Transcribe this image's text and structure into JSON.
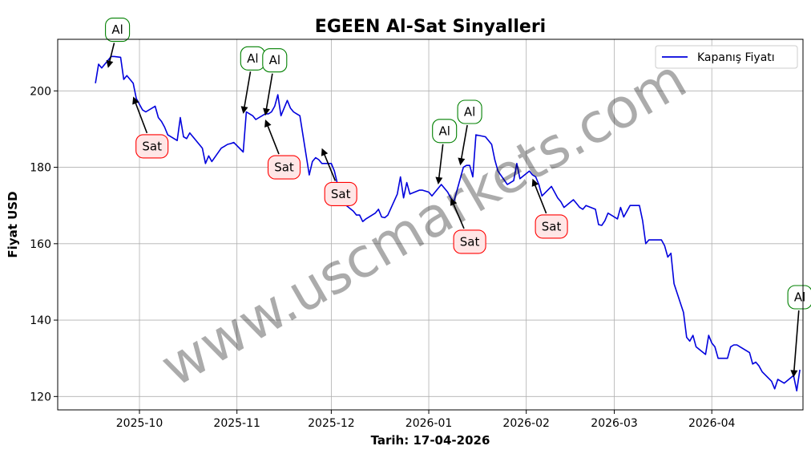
{
  "chart_data": {
    "type": "line",
    "title": "EGEEN Al-Sat Sinyalleri",
    "xlabel": "Tarih: 17-04-2026",
    "ylabel": "Fiyat USD",
    "x_ticks": [
      "2025-10",
      "2025-11",
      "2025-12",
      "2026-01",
      "2026-02",
      "2026-03",
      "2026-04"
    ],
    "y_ticks": [
      120,
      140,
      160,
      180,
      200
    ],
    "xlim": [
      "2025-09-05",
      "2026-04-30"
    ],
    "ylim": [
      116.5,
      213.5
    ],
    "grid": true,
    "legend_position": "top-right",
    "watermark": "www.uscmarkets.com",
    "colors": {
      "line": "#0000dd",
      "buy": "#008000",
      "sell": "#ff0000",
      "sell_fill": "#ffe6e6",
      "buy_fill": "#ffffff",
      "grid": "#b0b0b0"
    },
    "series": [
      {
        "name": "Kapanış Fiyatı",
        "points": [
          [
            "2025-09-17",
            202
          ],
          [
            "2025-09-18",
            207
          ],
          [
            "2025-09-19",
            206
          ],
          [
            "2025-09-22",
            209
          ],
          [
            "2025-09-23",
            209
          ],
          [
            "2025-09-25",
            208.8
          ],
          [
            "2025-09-26",
            203
          ],
          [
            "2025-09-27",
            204
          ],
          [
            "2025-09-29",
            202
          ],
          [
            "2025-09-30",
            198
          ],
          [
            "2025-10-01",
            196.5
          ],
          [
            "2025-10-02",
            195
          ],
          [
            "2025-10-03",
            194.5
          ],
          [
            "2025-10-06",
            196
          ],
          [
            "2025-10-07",
            193
          ],
          [
            "2025-10-08",
            192
          ],
          [
            "2025-10-09",
            190.5
          ],
          [
            "2025-10-10",
            188.5
          ],
          [
            "2025-10-13",
            187
          ],
          [
            "2025-10-14",
            193
          ],
          [
            "2025-10-15",
            188
          ],
          [
            "2025-10-16",
            187.5
          ],
          [
            "2025-10-17",
            189
          ],
          [
            "2025-10-20",
            186
          ],
          [
            "2025-10-21",
            185
          ],
          [
            "2025-10-22",
            181
          ],
          [
            "2025-10-23",
            183
          ],
          [
            "2025-10-24",
            181.5
          ],
          [
            "2025-10-27",
            185
          ],
          [
            "2025-10-28",
            185.5
          ],
          [
            "2025-10-29",
            186
          ],
          [
            "2025-10-30",
            186.2
          ],
          [
            "2025-10-31",
            186.5
          ],
          [
            "2025-11-03",
            184
          ],
          [
            "2025-11-04",
            194.5
          ],
          [
            "2025-11-05",
            194
          ],
          [
            "2025-11-06",
            193.5
          ],
          [
            "2025-11-07",
            192.5
          ],
          [
            "2025-11-10",
            194
          ],
          [
            "2025-11-11",
            194
          ],
          [
            "2025-11-12",
            194.5
          ],
          [
            "2025-11-13",
            196
          ],
          [
            "2025-11-14",
            199
          ],
          [
            "2025-11-15",
            193.5
          ],
          [
            "2025-11-17",
            197.5
          ],
          [
            "2025-11-18",
            195.5
          ],
          [
            "2025-11-19",
            194.5
          ],
          [
            "2025-11-20",
            194
          ],
          [
            "2025-11-21",
            193.5
          ],
          [
            "2025-11-24",
            178
          ],
          [
            "2025-11-25",
            181.5
          ],
          [
            "2025-11-26",
            182.5
          ],
          [
            "2025-11-27",
            182
          ],
          [
            "2025-11-28",
            181
          ],
          [
            "2025-12-01",
            181
          ],
          [
            "2025-12-02",
            179
          ],
          [
            "2025-12-03",
            175.5
          ],
          [
            "2025-12-04",
            173
          ],
          [
            "2025-12-05",
            170.5
          ],
          [
            "2025-12-08",
            168.5
          ],
          [
            "2025-12-09",
            167.5
          ],
          [
            "2025-12-10",
            167.5
          ],
          [
            "2025-12-11",
            165.8
          ],
          [
            "2025-12-12",
            166.5
          ],
          [
            "2025-12-15",
            168
          ],
          [
            "2025-12-16",
            169
          ],
          [
            "2025-12-17",
            167
          ],
          [
            "2025-12-18",
            166.8
          ],
          [
            "2025-12-19",
            167.5
          ],
          [
            "2025-12-22",
            173
          ],
          [
            "2025-12-23",
            177.5
          ],
          [
            "2025-12-24",
            172
          ],
          [
            "2025-12-25",
            176
          ],
          [
            "2025-12-26",
            173
          ],
          [
            "2025-12-29",
            174
          ],
          [
            "2025-12-30",
            174
          ],
          [
            "2026-01-01",
            173.5
          ],
          [
            "2026-01-02",
            172.5
          ],
          [
            "2026-01-05",
            175.5
          ],
          [
            "2026-01-06",
            174.5
          ],
          [
            "2026-01-07",
            173.5
          ],
          [
            "2026-01-08",
            172
          ],
          [
            "2026-01-09",
            171
          ],
          [
            "2026-01-12",
            180
          ],
          [
            "2026-01-13",
            180.5
          ],
          [
            "2026-01-14",
            180.5
          ],
          [
            "2026-01-15",
            177.5
          ],
          [
            "2026-01-16",
            188.5
          ],
          [
            "2026-01-19",
            188
          ],
          [
            "2026-01-20",
            187
          ],
          [
            "2026-01-21",
            186
          ],
          [
            "2026-01-22",
            182
          ],
          [
            "2026-01-23",
            179
          ],
          [
            "2026-01-26",
            175.5
          ],
          [
            "2026-01-27",
            176
          ],
          [
            "2026-01-28",
            176.5
          ],
          [
            "2026-01-29",
            181
          ],
          [
            "2026-01-30",
            177
          ],
          [
            "2026-02-02",
            179
          ],
          [
            "2026-02-03",
            178
          ],
          [
            "2026-02-04",
            177.5
          ],
          [
            "2026-02-05",
            175.5
          ],
          [
            "2026-02-06",
            172.5
          ],
          [
            "2026-02-09",
            175
          ],
          [
            "2026-02-10",
            173.5
          ],
          [
            "2026-02-11",
            172
          ],
          [
            "2026-02-12",
            171
          ],
          [
            "2026-02-13",
            169.5
          ],
          [
            "2026-02-16",
            171.5
          ],
          [
            "2026-02-17",
            170.5
          ],
          [
            "2026-02-18",
            169.5
          ],
          [
            "2026-02-19",
            169
          ],
          [
            "2026-02-20",
            170
          ],
          [
            "2026-02-23",
            169
          ],
          [
            "2026-02-24",
            165
          ],
          [
            "2026-02-25",
            164.8
          ],
          [
            "2026-02-26",
            166
          ],
          [
            "2026-02-27",
            168
          ],
          [
            "2026-03-02",
            166.5
          ],
          [
            "2026-03-03",
            169.5
          ],
          [
            "2026-03-04",
            167
          ],
          [
            "2026-03-05",
            168.5
          ],
          [
            "2026-03-06",
            170
          ],
          [
            "2026-03-09",
            170
          ],
          [
            "2026-03-10",
            166
          ],
          [
            "2026-03-11",
            160
          ],
          [
            "2026-03-12",
            161
          ],
          [
            "2026-03-16",
            161
          ],
          [
            "2026-03-17",
            159.5
          ],
          [
            "2026-03-18",
            156.5
          ],
          [
            "2026-03-19",
            157.5
          ],
          [
            "2026-03-20",
            149.5
          ],
          [
            "2026-03-23",
            142
          ],
          [
            "2026-03-24",
            135.5
          ],
          [
            "2026-03-25",
            134.5
          ],
          [
            "2026-03-26",
            136
          ],
          [
            "2026-03-27",
            133
          ],
          [
            "2026-03-30",
            131
          ],
          [
            "2026-03-31",
            136
          ],
          [
            "2026-04-01",
            134
          ],
          [
            "2026-04-02",
            133
          ],
          [
            "2026-04-03",
            130
          ],
          [
            "2026-04-06",
            130
          ],
          [
            "2026-04-07",
            133
          ],
          [
            "2026-04-08",
            133.5
          ],
          [
            "2026-04-09",
            133.5
          ],
          [
            "2026-04-10",
            133
          ],
          [
            "2026-04-13",
            131.5
          ],
          [
            "2026-04-14",
            128.5
          ],
          [
            "2026-04-15",
            129
          ],
          [
            "2026-04-16",
            128
          ],
          [
            "2026-04-17",
            126.5
          ],
          [
            "2026-04-20",
            124
          ],
          [
            "2026-04-21",
            122
          ],
          [
            "2026-04-22",
            124.5
          ],
          [
            "2026-04-23",
            124
          ],
          [
            "2026-04-24",
            123.5
          ],
          [
            "2026-04-27",
            125.5
          ],
          [
            "2026-04-28",
            121.5
          ],
          [
            "2026-04-29",
            127
          ]
        ]
      }
    ],
    "signals": [
      {
        "type": "buy",
        "label": "Al",
        "date": "2025-09-21",
        "price": 206,
        "text_date": "2025-09-24",
        "text_price": 216
      },
      {
        "type": "sell",
        "label": "Sat",
        "date": "2025-09-29",
        "price": 198.5,
        "text_date": "2025-10-05",
        "text_price": 185.5
      },
      {
        "type": "buy",
        "label": "Al",
        "date": "2025-11-03",
        "price": 194,
        "text_date": "2025-11-06",
        "text_price": 208.5
      },
      {
        "type": "buy",
        "label": "Al",
        "date": "2025-11-10",
        "price": 193.5,
        "text_date": "2025-11-13",
        "text_price": 208
      },
      {
        "type": "sell",
        "label": "Sat",
        "date": "2025-11-10",
        "price": 192.5,
        "text_date": "2025-11-16",
        "text_price": 180
      },
      {
        "type": "sell",
        "label": "Sat",
        "date": "2025-11-28",
        "price": 185,
        "text_date": "2025-12-04",
        "text_price": 173
      },
      {
        "type": "buy",
        "label": "Al",
        "date": "2026-01-04",
        "price": 175.5,
        "text_date": "2026-01-06",
        "text_price": 189.5
      },
      {
        "type": "buy",
        "label": "Al",
        "date": "2026-01-11",
        "price": 180.5,
        "text_date": "2026-01-14",
        "text_price": 194.5
      },
      {
        "type": "sell",
        "label": "Sat",
        "date": "2026-01-08",
        "price": 172,
        "text_date": "2026-01-14",
        "text_price": 160.5
      },
      {
        "type": "sell",
        "label": "Sat",
        "date": "2026-02-03",
        "price": 177,
        "text_date": "2026-02-09",
        "text_price": 164.5
      },
      {
        "type": "buy",
        "label": "Al",
        "date": "2026-04-27",
        "price": 125,
        "text_date": "2026-04-29",
        "text_price": 146
      }
    ]
  }
}
